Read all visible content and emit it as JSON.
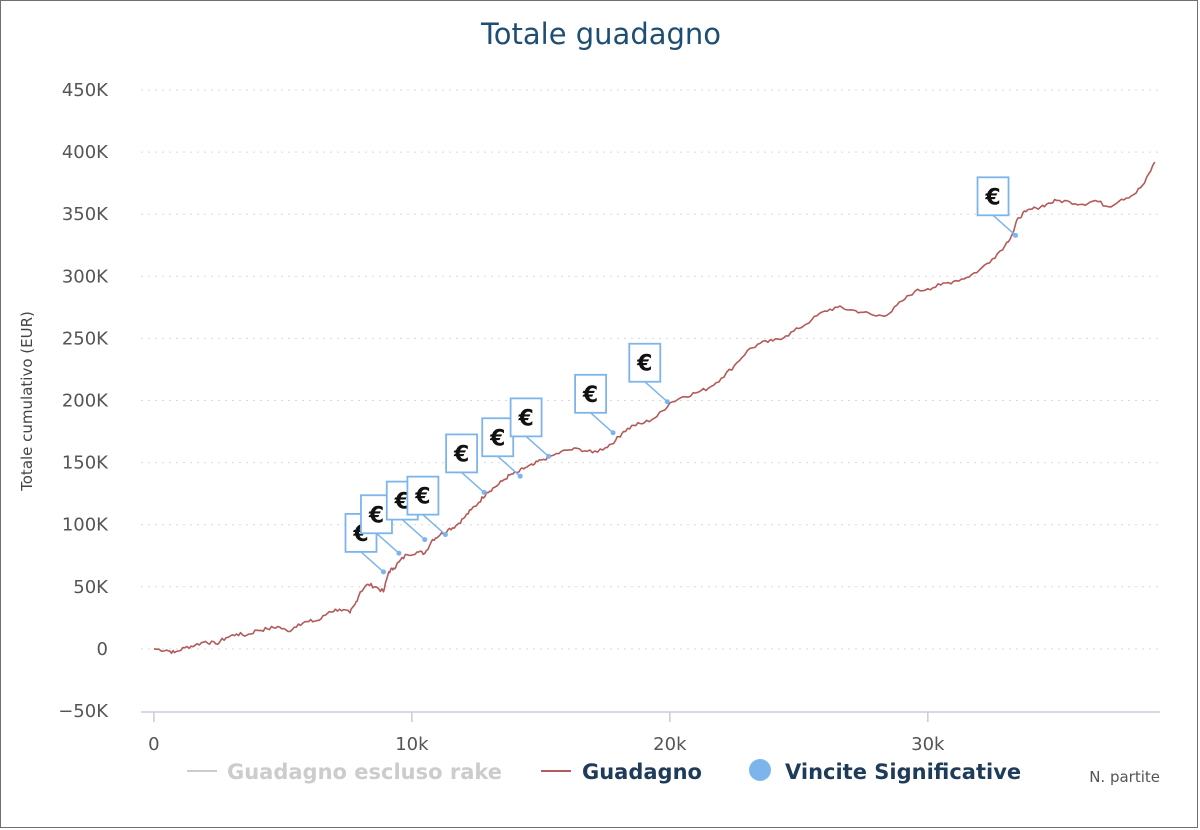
{
  "chart_data": {
    "type": "line",
    "title": "Totale guadagno",
    "ylabel": "Totale cumulativo (EUR)",
    "xlabel": "N. partite",
    "xlim": [
      -500,
      39000
    ],
    "ylim": [
      -50000,
      450000
    ],
    "xticks": [
      0,
      10000,
      20000,
      30000
    ],
    "xtick_labels": [
      "0",
      "10k",
      "20k",
      "30k"
    ],
    "yticks": [
      -50000,
      0,
      50000,
      100000,
      150000,
      200000,
      250000,
      300000,
      350000,
      400000,
      450000
    ],
    "ytick_labels": [
      "−50K",
      "0",
      "50K",
      "100K",
      "150K",
      "200K",
      "250K",
      "300K",
      "350K",
      "400K",
      "450K"
    ],
    "grid": true,
    "legend_position": "bottom",
    "series": [
      {
        "name": "Guadagno escluso rake",
        "color": "#cccccc",
        "hidden": true,
        "x": [],
        "y": []
      },
      {
        "name": "Guadagno",
        "color": "#b35a5a",
        "x": [
          0,
          500,
          800,
          1200,
          1600,
          2000,
          2400,
          2800,
          3200,
          3600,
          4000,
          4400,
          4800,
          5200,
          5600,
          6000,
          6400,
          6800,
          7200,
          7600,
          7800,
          8000,
          8300,
          8600,
          8900,
          9100,
          9300,
          9500,
          9800,
          10200,
          10500,
          10800,
          11100,
          11400,
          11700,
          12000,
          12300,
          12600,
          12900,
          13200,
          13500,
          13800,
          14100,
          14400,
          14700,
          15000,
          15500,
          16000,
          16500,
          17000,
          17500,
          17900,
          18200,
          18600,
          19000,
          19500,
          20000,
          20500,
          21000,
          21500,
          22000,
          22500,
          23000,
          23500,
          24000,
          24500,
          25000,
          25500,
          26000,
          26500,
          27000,
          27500,
          28000,
          28500,
          29000,
          29500,
          30000,
          30500,
          31000,
          31500,
          32000,
          32500,
          33000,
          33300,
          33500,
          33800,
          34200,
          34600,
          35000,
          35500,
          36000,
          36500,
          37000,
          37500,
          38000,
          38400,
          38800
        ],
        "y": [
          0,
          -1000,
          -3000,
          1000,
          3000,
          6000,
          4000,
          9000,
          12000,
          11000,
          15000,
          16000,
          18000,
          14000,
          20000,
          22000,
          23000,
          30000,
          32000,
          29000,
          36000,
          46000,
          52000,
          50000,
          46000,
          62000,
          65000,
          70000,
          76000,
          78000,
          77000,
          88000,
          92000,
          96000,
          99000,
          105000,
          112000,
          118000,
          126000,
          130000,
          135000,
          140000,
          142000,
          146000,
          148000,
          152000,
          156000,
          160000,
          161000,
          158000,
          162000,
          168000,
          175000,
          180000,
          182000,
          187000,
          198000,
          203000,
          206000,
          210000,
          218000,
          228000,
          240000,
          246000,
          248000,
          252000,
          258000,
          265000,
          272000,
          275000,
          273000,
          271000,
          268000,
          270000,
          280000,
          288000,
          290000,
          293000,
          296000,
          299000,
          305000,
          314000,
          325000,
          335000,
          347000,
          352000,
          355000,
          358000,
          361000,
          360000,
          358000,
          361000,
          356000,
          362000,
          366000,
          375000,
          392000
        ]
      },
      {
        "name": "Vincite Significative",
        "color": "#7cb5ec",
        "type": "flags",
        "points": [
          {
            "x": 8900,
            "y": 62000,
            "label": "€"
          },
          {
            "x": 9500,
            "y": 77000,
            "label": "€"
          },
          {
            "x": 10500,
            "y": 88000,
            "label": "€"
          },
          {
            "x": 11300,
            "y": 92000,
            "label": "€"
          },
          {
            "x": 12800,
            "y": 126000,
            "label": "€"
          },
          {
            "x": 14200,
            "y": 139000,
            "label": "€"
          },
          {
            "x": 15300,
            "y": 155000,
            "label": "€"
          },
          {
            "x": 17800,
            "y": 174000,
            "label": "€"
          },
          {
            "x": 19900,
            "y": 199000,
            "label": "€"
          },
          {
            "x": 33400,
            "y": 333000,
            "label": "€"
          }
        ]
      }
    ]
  }
}
